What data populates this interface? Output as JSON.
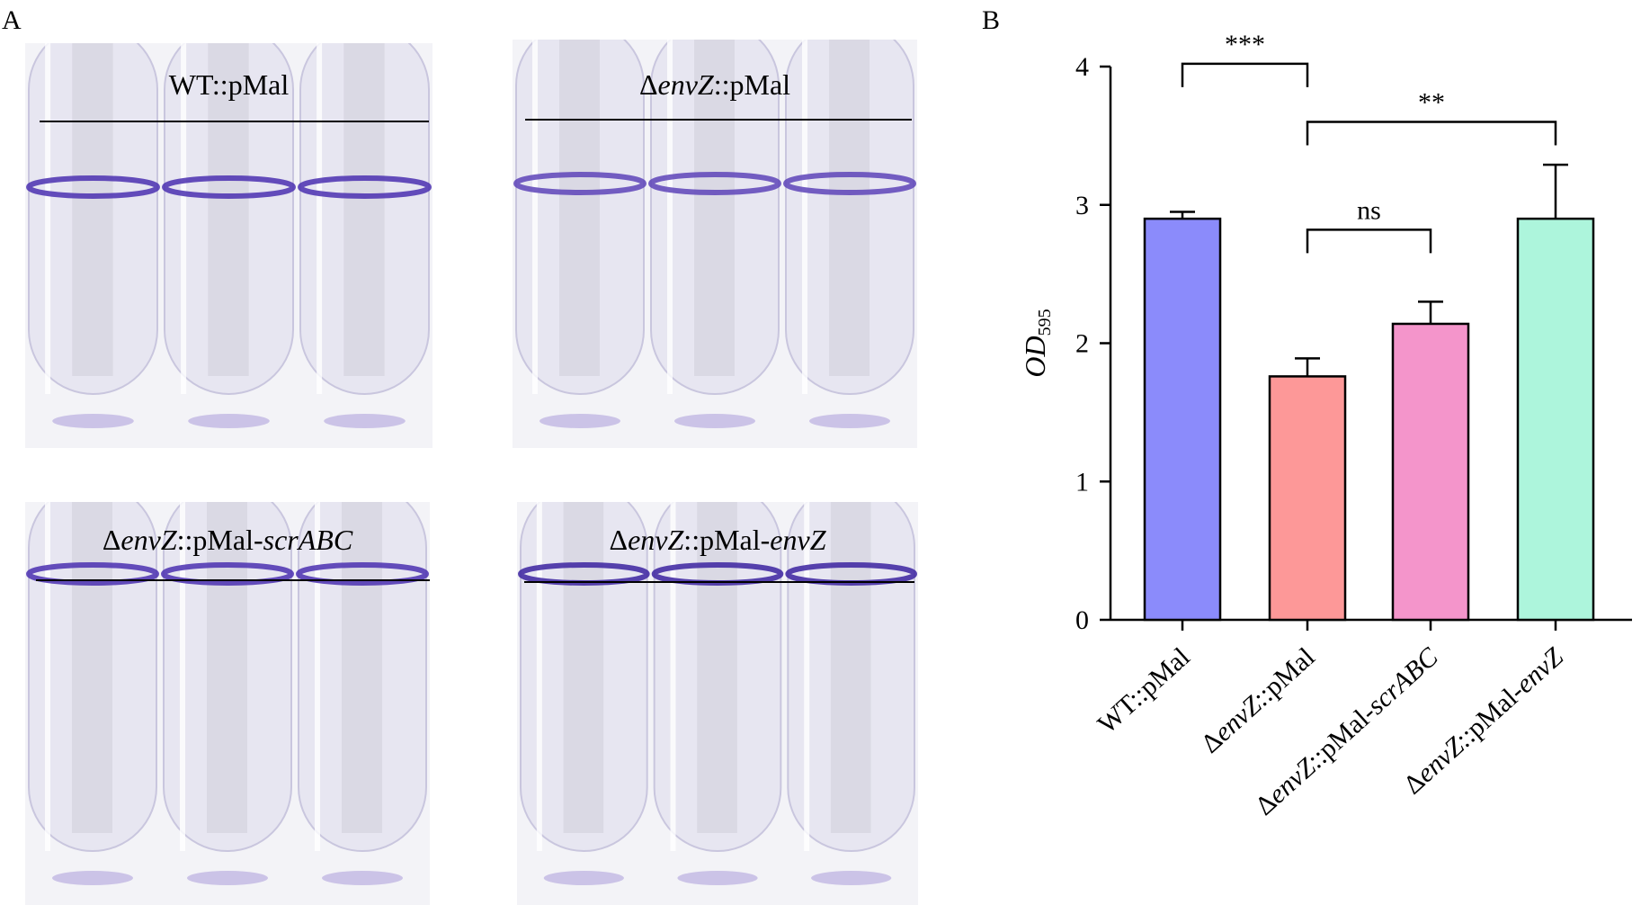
{
  "panels": {
    "a": "A",
    "b": "B"
  },
  "photos": [
    {
      "label_parts": [
        {
          "t": "WT::pMal",
          "i": false
        }
      ],
      "ring_color": "#4a2fb0"
    },
    {
      "label_parts": [
        {
          "t": "Δ",
          "i": false
        },
        {
          "t": "envZ",
          "i": true
        },
        {
          "t": "::pMal",
          "i": false
        }
      ],
      "ring_color": "#5d43b8"
    },
    {
      "label_parts": [
        {
          "t": "Δ",
          "i": false
        },
        {
          "t": "envZ",
          "i": true
        },
        {
          "t": "::pMal-",
          "i": false
        },
        {
          "t": "scrABC",
          "i": true
        }
      ],
      "ring_color": "#4a2fb0"
    },
    {
      "label_parts": [
        {
          "t": "Δ",
          "i": false
        },
        {
          "t": "envZ",
          "i": true
        },
        {
          "t": "::pMal-",
          "i": false
        },
        {
          "t": "envZ",
          "i": true
        }
      ],
      "ring_color": "#3b22a0"
    }
  ],
  "chart_data": {
    "type": "bar",
    "title": "",
    "xlabel": "",
    "ylabel": {
      "main": "OD",
      "sub": "595"
    },
    "ylim": [
      0,
      4
    ],
    "yticks": [
      0,
      1,
      2,
      3,
      4
    ],
    "categories": [
      [
        {
          "t": "WT::pMal",
          "i": false
        }
      ],
      [
        {
          "t": "Δ",
          "i": false
        },
        {
          "t": "envZ",
          "i": true
        },
        {
          "t": "::pMal",
          "i": false
        }
      ],
      [
        {
          "t": "Δ",
          "i": false
        },
        {
          "t": "envZ",
          "i": true
        },
        {
          "t": "::pMal-",
          "i": false
        },
        {
          "t": "scrABC",
          "i": true
        }
      ],
      [
        {
          "t": "Δ",
          "i": false
        },
        {
          "t": "envZ",
          "i": true
        },
        {
          "t": "::pMal-",
          "i": false
        },
        {
          "t": "envZ",
          "i": true
        }
      ]
    ],
    "values": [
      2.9,
      1.76,
      2.14,
      2.9
    ],
    "errors": [
      0.05,
      0.13,
      0.16,
      0.39
    ],
    "colors": [
      "#8b8bfb",
      "#fd9898",
      "#f495cb",
      "#adf5dc"
    ],
    "significance": [
      {
        "from": 0,
        "to": 1,
        "label": "***",
        "y": 4.02
      },
      {
        "from": 1,
        "to": 3,
        "label": "**",
        "y": 3.6
      },
      {
        "from": 1,
        "to": 2,
        "label": "ns",
        "y": 2.82
      }
    ]
  }
}
